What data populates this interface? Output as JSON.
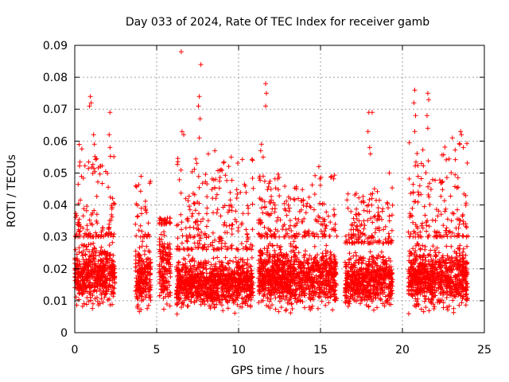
{
  "chart_data": {
    "type": "scatter",
    "title": "Day 033 of 2024, Rate Of TEC Index for receiver gamb",
    "xlabel": "GPS time / hours",
    "ylabel": "ROTI / TECUs",
    "xlim": [
      0,
      25
    ],
    "ylim": [
      0,
      0.09
    ],
    "x_ticks": [
      0,
      5,
      10,
      15,
      20,
      25
    ],
    "y_ticks": [
      0,
      0.01,
      0.02,
      0.03,
      0.04,
      0.05,
      0.06,
      0.07,
      0.08,
      0.09
    ],
    "x_tick_labels": [
      "0",
      "5",
      "10",
      "15",
      "20",
      "25"
    ],
    "y_tick_labels": [
      "0",
      "0.01",
      "0.02",
      "0.03",
      "0.04",
      "0.05",
      "0.06",
      "0.07",
      "0.08",
      "0.09"
    ],
    "grid": true,
    "marker": "+",
    "color": "#ff0000",
    "series": [
      {
        "name": "ROTI",
        "segments": [
          {
            "x_range": [
              0.0,
              2.45
            ],
            "y_core": [
              0.006,
              0.03
            ],
            "y_max": 0.06
          },
          {
            "x_range": [
              3.7,
              4.65
            ],
            "y_core": [
              0.005,
              0.03
            ],
            "y_max": 0.048
          },
          {
            "x_range": [
              5.15,
              5.85
            ],
            "y_core": [
              0.006,
              0.034
            ],
            "y_max": 0.036
          },
          {
            "x_range": [
              6.2,
              10.9
            ],
            "y_core": [
              0.005,
              0.026
            ],
            "y_max": 0.055
          },
          {
            "x_range": [
              11.2,
              16.0
            ],
            "y_core": [
              0.005,
              0.03
            ],
            "y_max": 0.05
          },
          {
            "x_range": [
              16.5,
              19.4
            ],
            "y_core": [
              0.005,
              0.028
            ],
            "y_max": 0.046
          },
          {
            "x_range": [
              20.35,
              24.0
            ],
            "y_core": [
              0.005,
              0.03
            ],
            "y_max": 0.06
          }
        ],
        "outliers": [
          [
            0.95,
            0.074
          ],
          [
            1.0,
            0.072
          ],
          [
            0.9,
            0.071
          ],
          [
            1.15,
            0.062
          ],
          [
            1.2,
            0.059
          ],
          [
            2.15,
            0.069
          ],
          [
            2.1,
            0.062
          ],
          [
            2.15,
            0.058
          ],
          [
            4.05,
            0.049
          ],
          [
            6.5,
            0.088
          ],
          [
            6.55,
            0.063
          ],
          [
            6.65,
            0.062
          ],
          [
            7.7,
            0.084
          ],
          [
            7.6,
            0.074
          ],
          [
            7.55,
            0.071
          ],
          [
            7.65,
            0.067
          ],
          [
            7.6,
            0.061
          ],
          [
            8.15,
            0.056
          ],
          [
            8.55,
            0.057
          ],
          [
            9.55,
            0.055
          ],
          [
            11.4,
            0.059
          ],
          [
            11.35,
            0.057
          ],
          [
            11.5,
            0.055
          ],
          [
            11.65,
            0.078
          ],
          [
            11.7,
            0.075
          ],
          [
            11.65,
            0.071
          ],
          [
            14.9,
            0.052
          ],
          [
            17.95,
            0.069
          ],
          [
            18.15,
            0.069
          ],
          [
            17.9,
            0.063
          ],
          [
            18.0,
            0.058
          ],
          [
            18.05,
            0.056
          ],
          [
            19.2,
            0.05
          ],
          [
            20.75,
            0.076
          ],
          [
            20.7,
            0.072
          ],
          [
            20.8,
            0.068
          ],
          [
            20.75,
            0.063
          ],
          [
            21.55,
            0.075
          ],
          [
            21.6,
            0.073
          ],
          [
            21.5,
            0.068
          ],
          [
            21.55,
            0.064
          ],
          [
            23.05,
            0.061
          ],
          [
            23.55,
            0.063
          ],
          [
            23.6,
            0.062
          ],
          [
            23.5,
            0.059
          ]
        ]
      }
    ]
  }
}
